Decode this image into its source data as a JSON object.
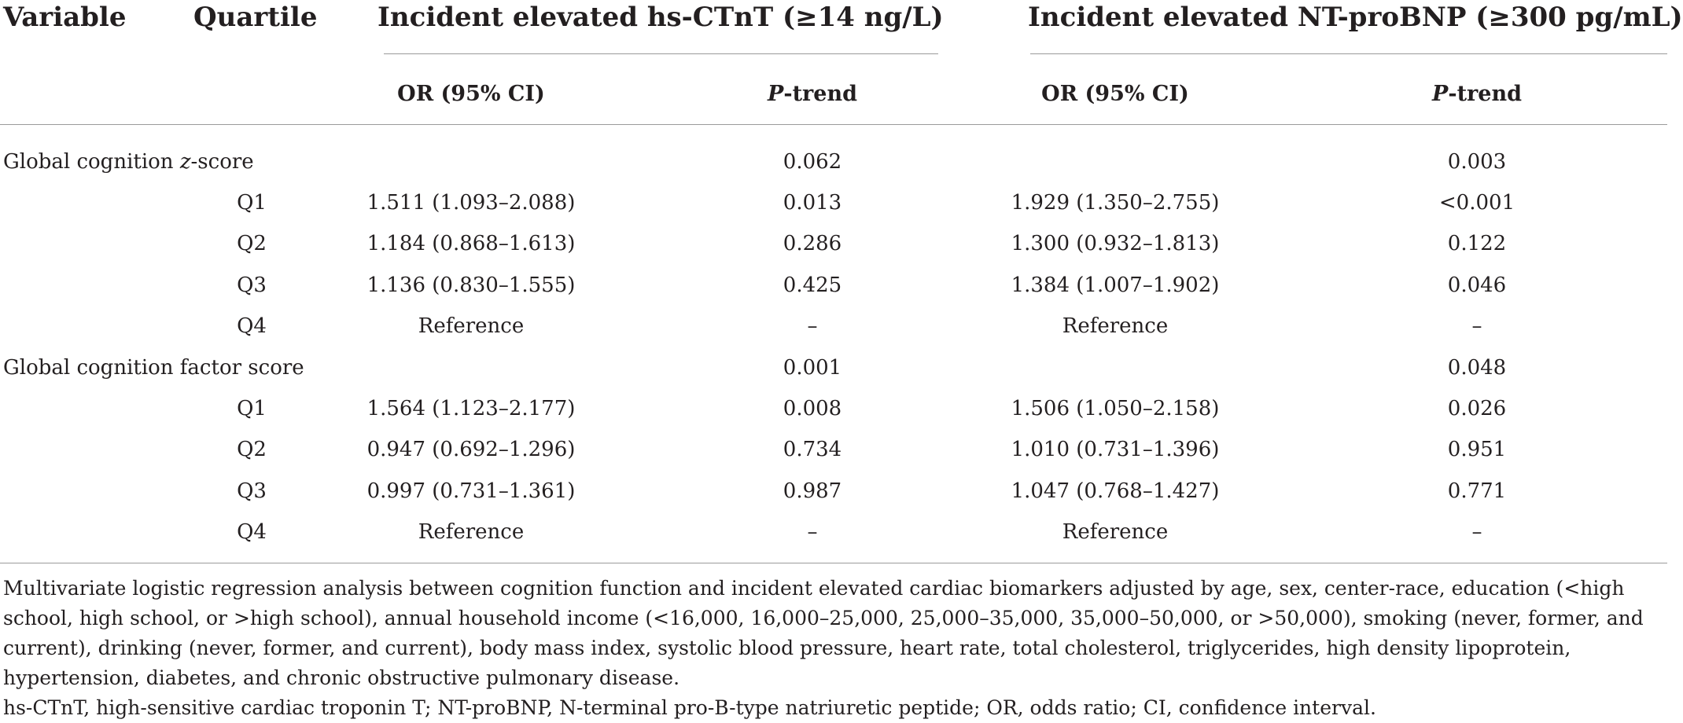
{
  "header": {
    "variable": "Variable",
    "quartile": "Quartile",
    "group1": "Incident elevated hs-CTnT (≥14 ng/L)",
    "group2": "Incident elevated NT-proBNP (≥300 pg/mL)",
    "or_label": "OR (95% CI)",
    "p_italic": "P",
    "p_rest": "-trend"
  },
  "sections": [
    {
      "name_prefix": "Global cognition ",
      "name_italic": "z",
      "name_suffix": "-score",
      "p_trend1": "0.062",
      "p_trend2": "0.003",
      "rows": [
        {
          "q": "Q1",
          "or1": "1.511 (1.093–2.088)",
          "p1": "0.013",
          "or2": "1.929 (1.350–2.755)",
          "p2": "<0.001"
        },
        {
          "q": "Q2",
          "or1": "1.184 (0.868–1.613)",
          "p1": "0.286",
          "or2": "1.300 (0.932–1.813)",
          "p2": "0.122"
        },
        {
          "q": "Q3",
          "or1": "1.136 (0.830–1.555)",
          "p1": "0.425",
          "or2": "1.384 (1.007–1.902)",
          "p2": "0.046"
        },
        {
          "q": "Q4",
          "or1": "Reference",
          "p1": "–",
          "or2": "Reference",
          "p2": "–"
        }
      ]
    },
    {
      "name_prefix": "Global cognition factor score",
      "name_italic": "",
      "name_suffix": "",
      "p_trend1": "0.001",
      "p_trend2": "0.048",
      "rows": [
        {
          "q": "Q1",
          "or1": "1.564 (1.123–2.177)",
          "p1": "0.008",
          "or2": "1.506 (1.050–2.158)",
          "p2": "0.026"
        },
        {
          "q": "Q2",
          "or1": "0.947 (0.692–1.296)",
          "p1": "0.734",
          "or2": "1.010 (0.731–1.396)",
          "p2": "0.951"
        },
        {
          "q": "Q3",
          "or1": "0.997 (0.731–1.361)",
          "p1": "0.987",
          "or2": "1.047 (0.768–1.427)",
          "p2": "0.771"
        },
        {
          "q": "Q4",
          "or1": "Reference",
          "p1": "–",
          "or2": "Reference",
          "p2": "–"
        }
      ]
    }
  ],
  "footnotes": {
    "note1": "Multivariate logistic regression analysis between cognition function and incident elevated cardiac biomarkers adjusted by age, sex, center-race, education (<high school, high school, or >high school), annual household income (<16,000, 16,000–25,000, 25,000–35,000, 35,000–50,000, or >50,000), smoking (never, former, and current), drinking (never, former, and current), body mass index, systolic blood pressure, heart rate, total cholesterol, triglycerides, high density lipoprotein, hypertension, diabetes, and chronic obstructive pulmonary disease.",
    "note2": "hs-CTnT, high-sensitive cardiac troponin T; NT-proBNP, N-terminal pro-B-type natriuretic peptide; OR, odds ratio; CI, confidence interval."
  }
}
